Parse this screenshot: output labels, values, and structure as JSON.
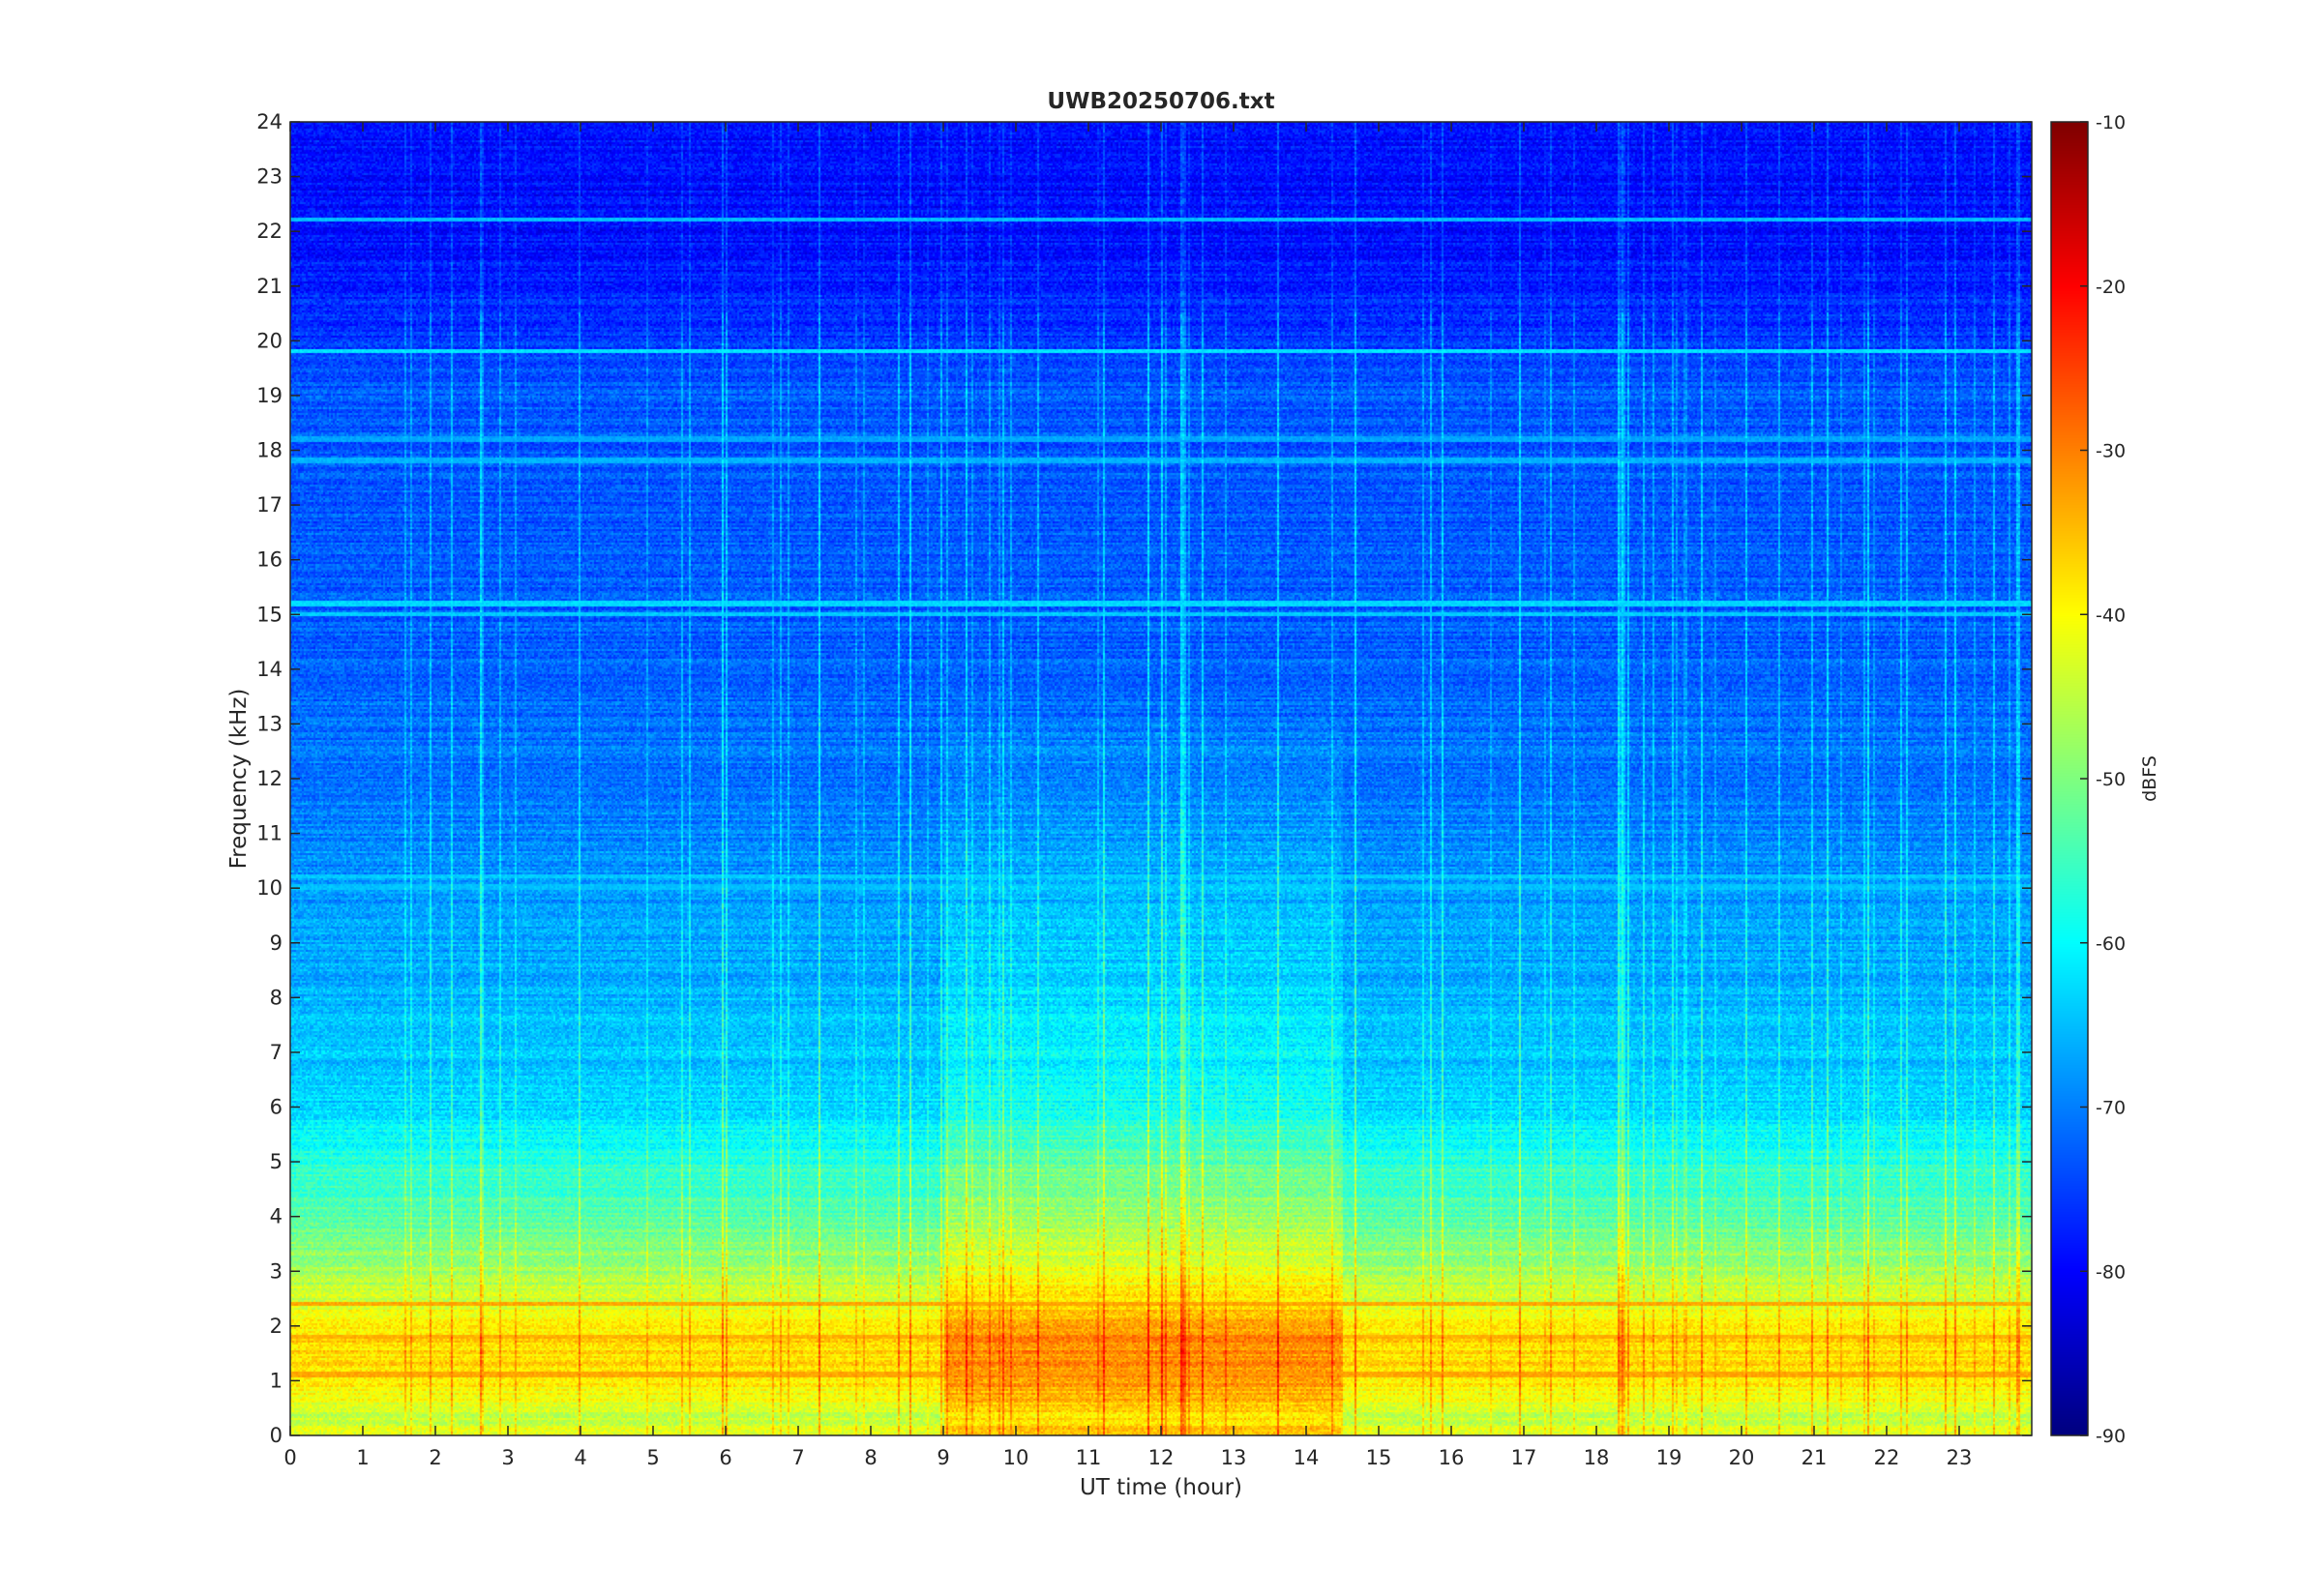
{
  "chart_data": {
    "type": "heatmap",
    "title": "UWB20250706.txt",
    "xlabel": "UT time (hour)",
    "ylabel": "Frequency (kHz)",
    "xlim": [
      0,
      24
    ],
    "ylim": [
      0,
      24
    ],
    "x_ticks": [
      "0",
      "1",
      "2",
      "3",
      "4",
      "5",
      "6",
      "7",
      "8",
      "9",
      "10",
      "11",
      "12",
      "13",
      "14",
      "15",
      "16",
      "17",
      "18",
      "19",
      "20",
      "21",
      "22",
      "23"
    ],
    "y_ticks": [
      "0",
      "1",
      "2",
      "3",
      "4",
      "5",
      "6",
      "7",
      "8",
      "9",
      "10",
      "11",
      "12",
      "13",
      "14",
      "15",
      "16",
      "17",
      "18",
      "19",
      "20",
      "21",
      "22",
      "23",
      "24"
    ],
    "colorbar": {
      "label": "dBFS",
      "range": [
        -90,
        -10
      ],
      "ticks": [
        "-90",
        "-80",
        "-70",
        "-60",
        "-50",
        "-40",
        "-30",
        "-20",
        "-10"
      ],
      "colormap": "jet"
    },
    "level_profile_by_frequency": {
      "frequency_khz": [
        0,
        0.3,
        1.0,
        1.8,
        2.5,
        3.0,
        4.0,
        5.0,
        6.0,
        8.0,
        10.0,
        12.0,
        14.0,
        16.0,
        19.0,
        20.5,
        22.0,
        24.0
      ],
      "dbfs": [
        -40,
        -45,
        -38,
        -37,
        -44,
        -47,
        -53,
        -57,
        -63,
        -66,
        -68,
        -71,
        -72,
        -73,
        -73,
        -77,
        -79,
        -79
      ]
    },
    "narrowband_lines_khz": [
      {
        "freq": 19.8,
        "dbfs": -62
      },
      {
        "freq": 22.2,
        "dbfs": -65
      },
      {
        "freq": 15.2,
        "dbfs": -63
      },
      {
        "freq": 15.0,
        "dbfs": -64
      },
      {
        "freq": 10.2,
        "dbfs": -64
      },
      {
        "freq": 10.0,
        "dbfs": -65
      },
      {
        "freq": 17.8,
        "dbfs": -66
      },
      {
        "freq": 18.2,
        "dbfs": -67
      },
      {
        "freq": 1.1,
        "dbfs": -33
      },
      {
        "freq": 1.8,
        "dbfs": -34
      },
      {
        "freq": 2.4,
        "dbfs": -33
      }
    ],
    "daytime_enhancement": {
      "start_hour": 9,
      "end_hour": 14.5,
      "max_freq_khz": 13,
      "delta_db": 6
    }
  }
}
